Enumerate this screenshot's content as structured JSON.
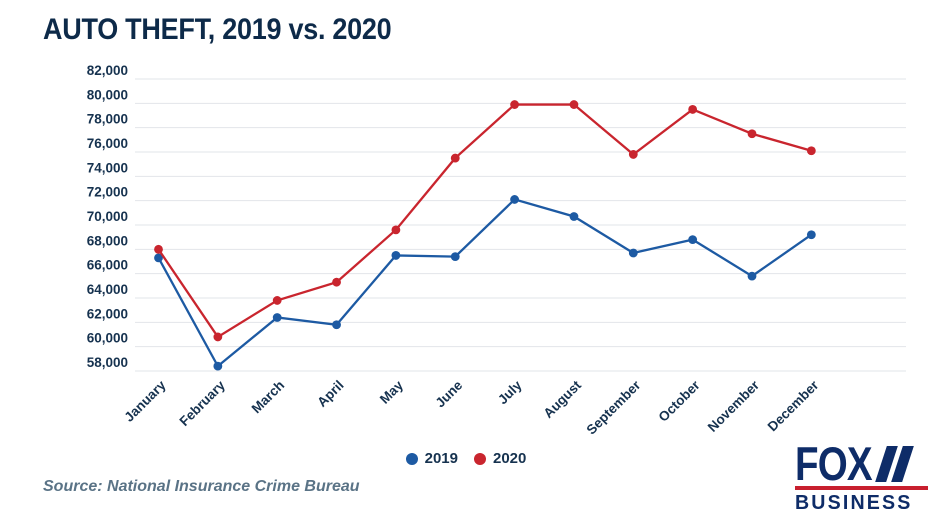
{
  "title": "AUTO THEFT, 2019 vs. 2020",
  "source": "Source: National Insurance Crime Bureau",
  "logo": {
    "line1": "FOX",
    "line2": "BUSINESS"
  },
  "colors": {
    "title_text": "#0d2a49",
    "axis_text": "#16324f",
    "series_2019": "#1d5aa3",
    "series_2020": "#c9252e",
    "gridline": "#e2e5e9",
    "source_text": "#5a7386",
    "logo_navy": "#0e2c68",
    "logo_red": "#c81f2e"
  },
  "chart_data": {
    "type": "line",
    "title": "AUTO THEFT, 2019 vs. 2020",
    "categories": [
      "January",
      "February",
      "March",
      "April",
      "May",
      "June",
      "July",
      "August",
      "September",
      "October",
      "November",
      "December"
    ],
    "series": [
      {
        "name": "2019",
        "color": "#1d5aa3",
        "values": [
          67300,
          58400,
          62400,
          61800,
          67500,
          67400,
          72100,
          70700,
          67700,
          68800,
          65800,
          69200
        ]
      },
      {
        "name": "2020",
        "color": "#c9252e",
        "values": [
          68000,
          60800,
          63800,
          65300,
          69600,
          75500,
          79900,
          79900,
          75800,
          79500,
          77500,
          76100
        ]
      }
    ],
    "xlabel": "",
    "ylabel": "",
    "ylim": [
      58000,
      82000
    ],
    "ytick_step": 2000,
    "grid": true,
    "legend_position": "bottom-center",
    "marker": "circle"
  }
}
